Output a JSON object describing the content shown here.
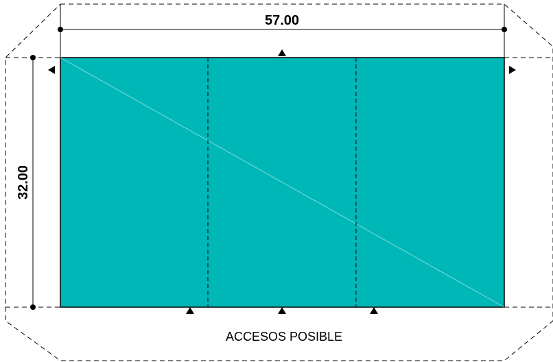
{
  "plan": {
    "width_label": "57.00",
    "height_label": "32.00",
    "access_note": "ACCESOS POSIBLE",
    "fill_color": "#00b7b7",
    "line_color": "#000000",
    "diagonal_color": "#7fdcdc",
    "sections": 3,
    "access_markers_top": 1,
    "access_markers_bottom": 3,
    "access_markers_sides": 2
  }
}
